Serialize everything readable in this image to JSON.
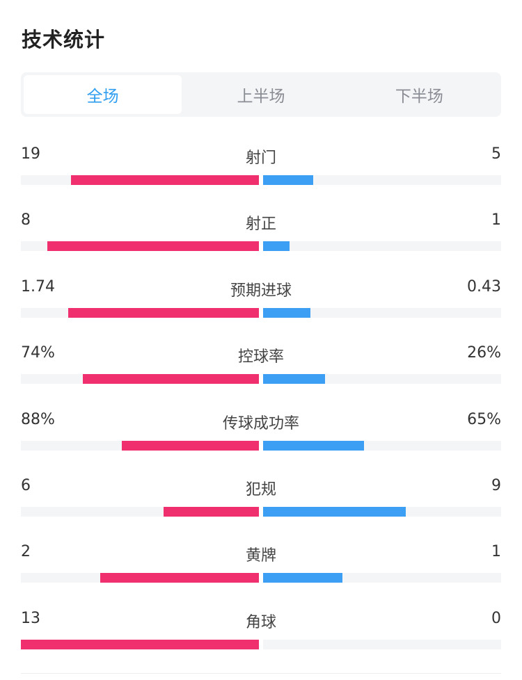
{
  "title": "技术统计",
  "tabs": [
    {
      "label": "全场",
      "active": true
    },
    {
      "label": "上半场",
      "active": false
    },
    {
      "label": "下半场",
      "active": false
    }
  ],
  "colors": {
    "home": "#f0306e",
    "away": "#3d9ff3",
    "track": "#f4f5f7",
    "active_tab": "#2f9ef0"
  },
  "stats": [
    {
      "label": "射门",
      "home": "19",
      "away": "5",
      "home_fraction": 0.79,
      "away_fraction": 0.21
    },
    {
      "label": "射正",
      "home": "8",
      "away": "1",
      "home_fraction": 0.89,
      "away_fraction": 0.11
    },
    {
      "label": "预期进球",
      "home": "1.74",
      "away": "0.43",
      "home_fraction": 0.8,
      "away_fraction": 0.2
    },
    {
      "label": "控球率",
      "home": "74%",
      "away": "26%",
      "home_fraction": 0.74,
      "away_fraction": 0.26
    },
    {
      "label": "传球成功率",
      "home": "88%",
      "away": "65%",
      "home_fraction": 0.575,
      "away_fraction": 0.425
    },
    {
      "label": "犯规",
      "home": "6",
      "away": "9",
      "home_fraction": 0.4,
      "away_fraction": 0.6
    },
    {
      "label": "黄牌",
      "home": "2",
      "away": "1",
      "home_fraction": 0.667,
      "away_fraction": 0.333
    },
    {
      "label": "角球",
      "home": "13",
      "away": "0",
      "home_fraction": 1.0,
      "away_fraction": 0.0
    }
  ]
}
